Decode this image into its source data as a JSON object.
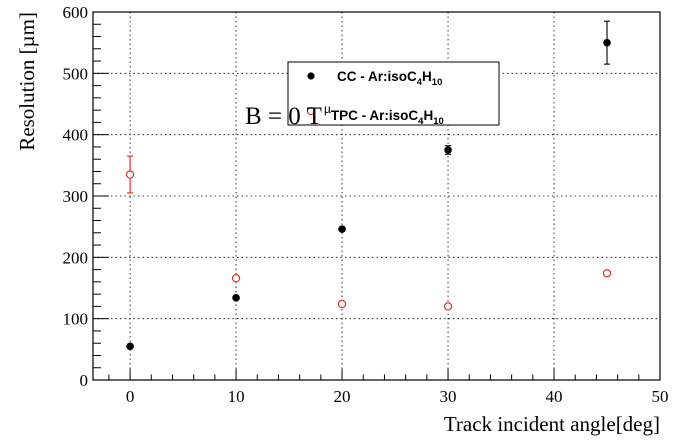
{
  "chart_data": {
    "type": "scatter",
    "ylabel": "Resolution [µm]",
    "xlabel": "Track incident angle[deg]",
    "xlim": [
      -3.5,
      50
    ],
    "ylim": [
      0,
      600
    ],
    "x_ticks": [
      "0",
      "10",
      "20",
      "30",
      "40",
      "50"
    ],
    "y_ticks": [
      "0",
      "100",
      "200",
      "300",
      "400",
      "500",
      "600"
    ],
    "grid": true,
    "legend_position": "top-center",
    "annotation": "B = 0 T",
    "series": [
      {
        "name": "CC - Ar:isoC4H10",
        "legend_parts": {
          "pre": "CC - Ar:isoC",
          "sub1": "4",
          "mid": "H",
          "sub2": "10"
        },
        "marker": "filled-circle",
        "color": "#000000",
        "points": [
          {
            "x": 0,
            "y": 55,
            "err": 0
          },
          {
            "x": 10,
            "y": 134,
            "err": 0
          },
          {
            "x": 20,
            "y": 246,
            "err": 0
          },
          {
            "x": 30,
            "y": 375,
            "err": 7
          },
          {
            "x": 45,
            "y": 550,
            "err": 35
          }
        ]
      },
      {
        "name": "µTPC - Ar:isoC4H10",
        "legend_parts": {
          "pre": "TPC - Ar:isoC",
          "mu": "µ",
          "sub1": "4",
          "mid": "H",
          "sub2": "10"
        },
        "marker": "open-circle",
        "color": "#e0241b",
        "points": [
          {
            "x": 0,
            "y": 335,
            "err": 30
          },
          {
            "x": 10,
            "y": 166,
            "err": 0
          },
          {
            "x": 20,
            "y": 124,
            "err": 0
          },
          {
            "x": 30,
            "y": 120,
            "err": 0
          },
          {
            "x": 45,
            "y": 174,
            "err": 0
          }
        ]
      }
    ]
  }
}
